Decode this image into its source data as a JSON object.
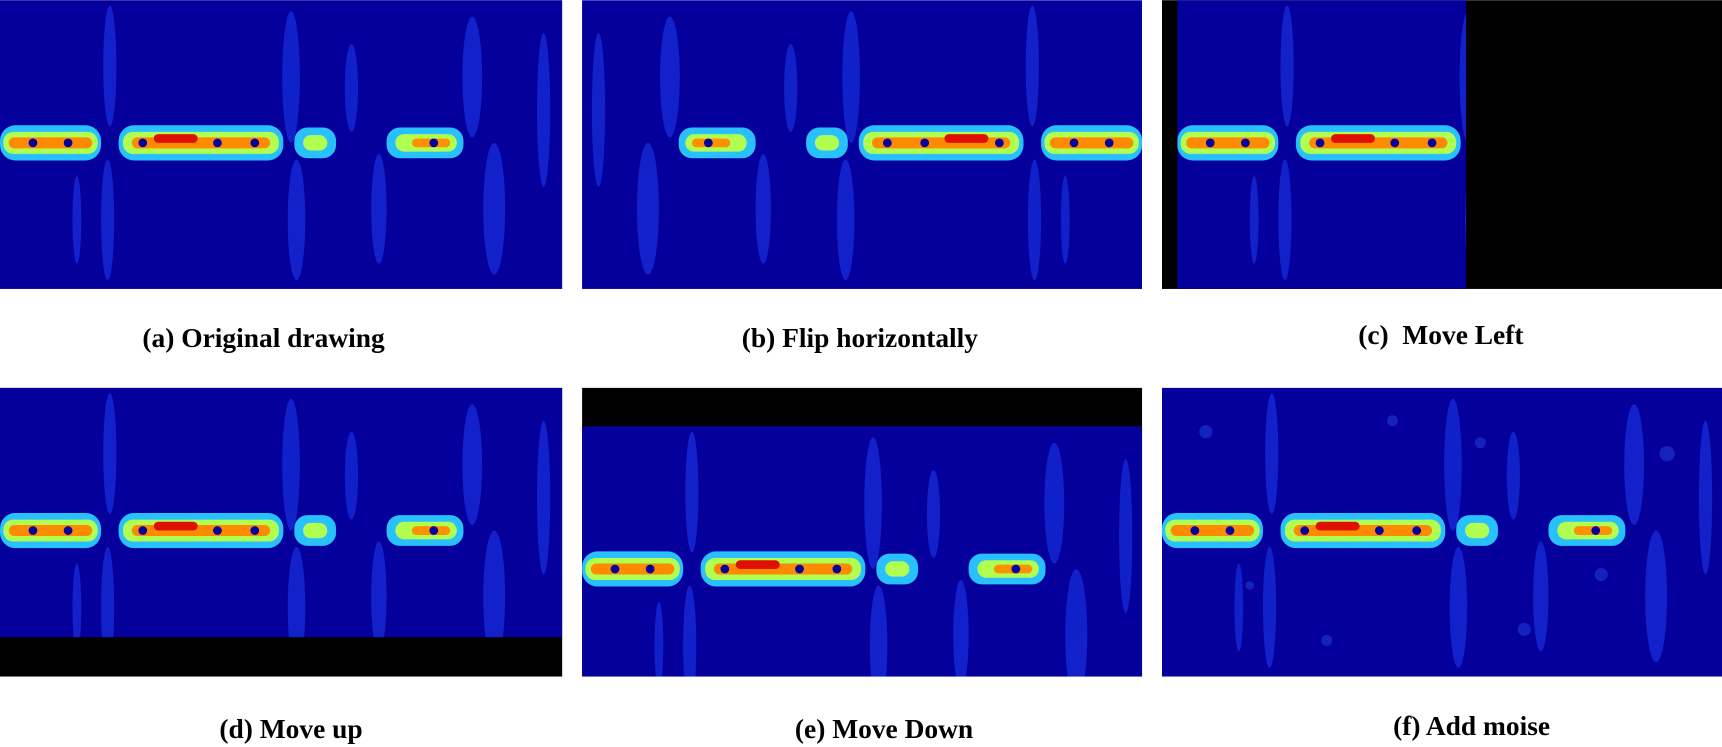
{
  "panels": [
    {
      "caption": "(a) Original drawing"
    },
    {
      "caption": "(b) Flip horizontally"
    },
    {
      "caption": "(c)  Move Left"
    },
    {
      "caption": "(d) Move up"
    },
    {
      "caption": "(e) Move Down"
    },
    {
      "caption": "(f) Add moise"
    }
  ]
}
